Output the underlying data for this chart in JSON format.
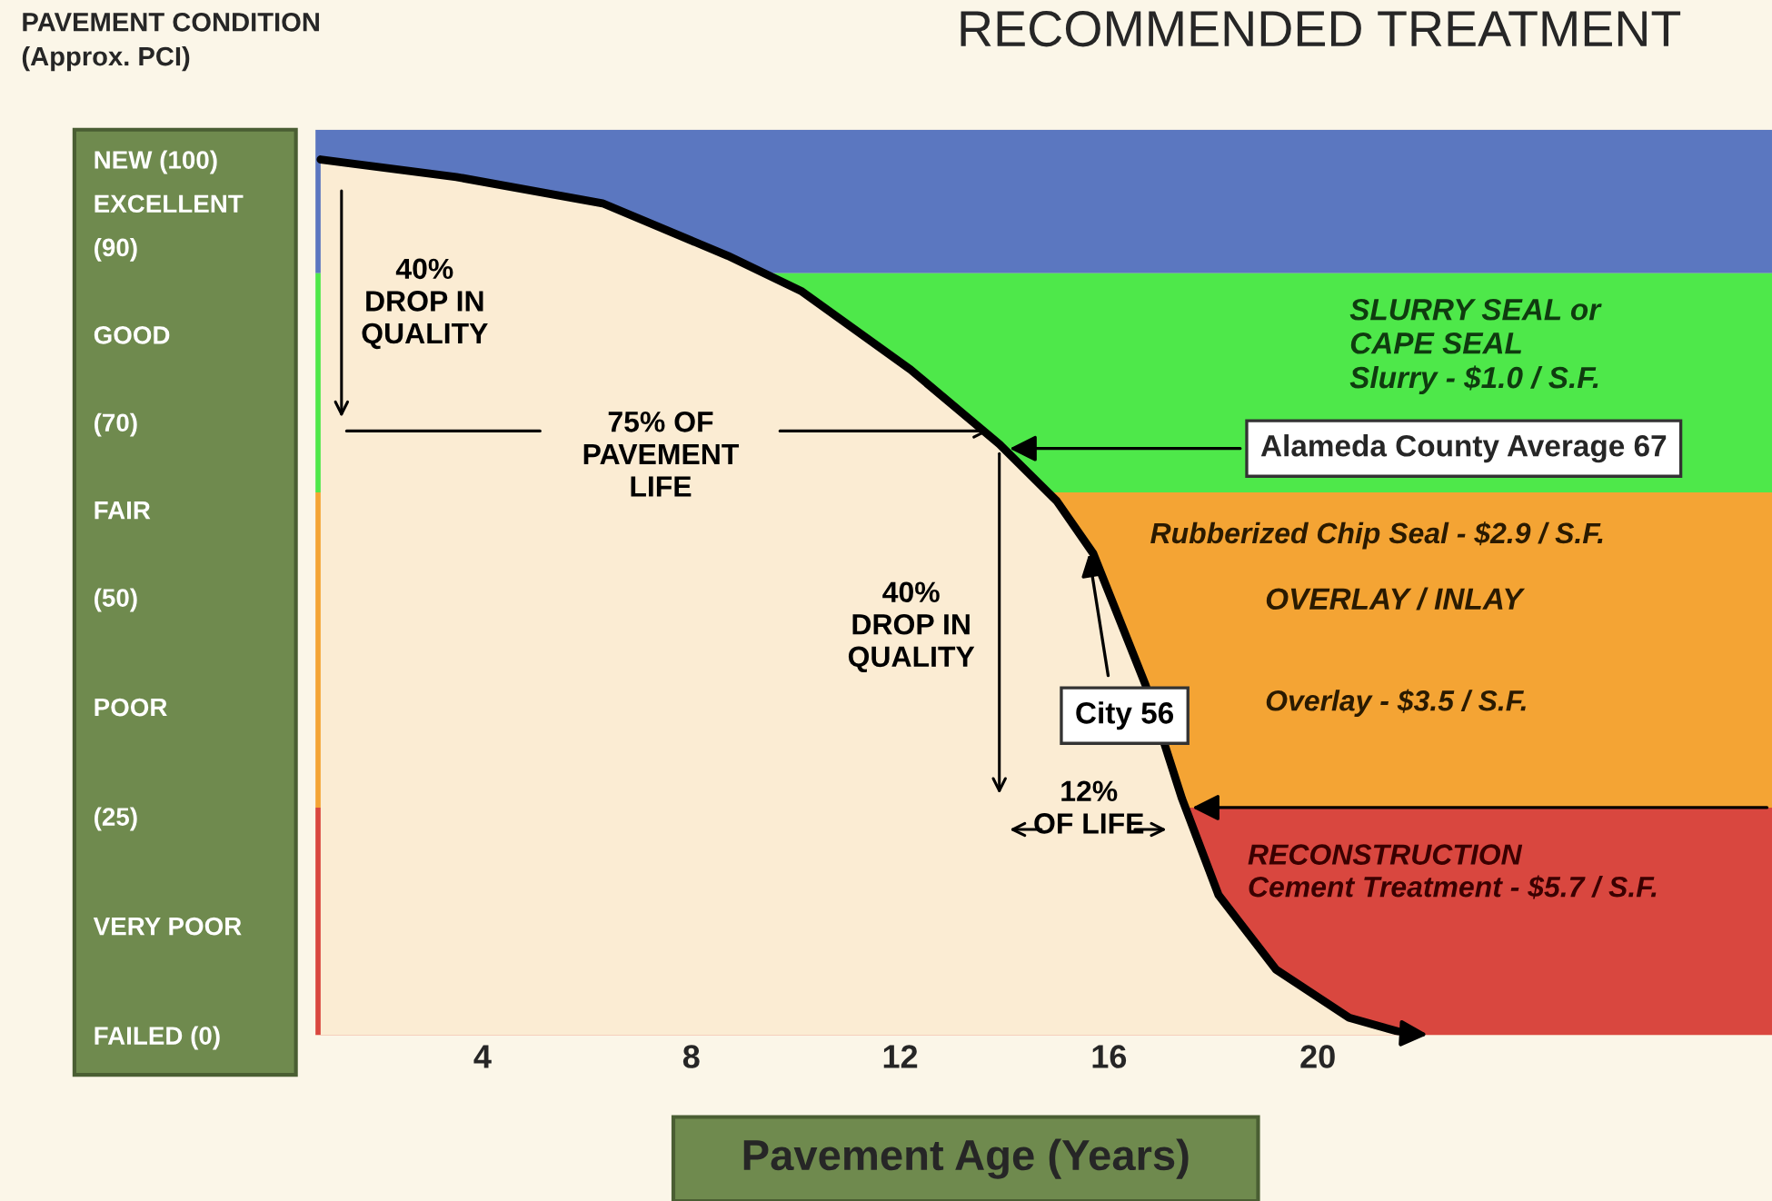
{
  "chart_data": {
    "type": "area",
    "title": "RECOMMENDED TREATMENT",
    "xlabel": "Pavement Age (Years)",
    "ylabel": "PAVEMENT CONDITION\n(Approx. PCI)",
    "x": [
      0.9,
      3.5,
      6.3,
      8.7,
      10.1,
      12.2,
      13.9,
      15,
      15.7,
      16.7,
      17.4,
      18.1,
      19.2,
      20.6,
      21.8
    ],
    "series": [
      {
        "color": "#fbecd3",
        "values": [
          100,
          98,
          95,
          89,
          85,
          76,
          67.5,
          61,
          55,
          40,
          27,
          16,
          7.5,
          2,
          0
        ]
      }
    ],
    "xlim": [
      0.8,
      28.7
    ],
    "xticks": [
      4,
      8,
      12,
      16,
      20
    ],
    "ylim": [
      0,
      103.4
    ],
    "yticks": [
      {
        "value": 100,
        "label": "NEW (100)"
      },
      {
        "value": 95,
        "label": "EXCELLENT"
      },
      {
        "value": 90,
        "label": "(90)"
      },
      {
        "value": 80,
        "label": "GOOD"
      },
      {
        "value": 70,
        "label": "(70)"
      },
      {
        "value": 60,
        "label": "FAIR"
      },
      {
        "value": 50,
        "label": "(50)"
      },
      {
        "value": 37.5,
        "label": "POOR"
      },
      {
        "value": 25,
        "label": "(25)"
      },
      {
        "value": 12.5,
        "label": "VERY POOR"
      },
      {
        "value": 0,
        "label": "FAILED (0)"
      }
    ],
    "bands": [
      {
        "axis": "y",
        "from": 87,
        "to": 103.4,
        "color": "#5b77c0"
      },
      {
        "axis": "y",
        "from": 62,
        "to": 87,
        "color": "#4ee84a"
      },
      {
        "axis": "y",
        "from": 26,
        "to": 62,
        "color": "#f4a434"
      },
      {
        "axis": "y",
        "from": 0,
        "to": 26,
        "color": "#d9473f"
      }
    ],
    "annotations": [
      "40%\nDROP IN\nQUALITY",
      "75% OF\nPAVEMENT\nLIFE",
      "40%\nDROP IN\nQUALITY",
      "12%\nOF LIFE",
      "SLURRY SEAL or\nCAPE SEAL\nSlurry - $1.0 / S.F.",
      {
        "text": "Alameda County Average 67",
        "x": 14.0,
        "y": 67
      },
      "Rubberized Chip Seal - $2.9 / S.F.",
      "OVERLAY / INLAY",
      {
        "text": "City 56",
        "x": 15.6,
        "y": 55.5
      },
      "Overlay - $3.5 / S.F.",
      "RECONSTRUCTION\nCement Treatment - $5.7 / S.F."
    ],
    "grid": false,
    "legend": false,
    "marker": "none",
    "line_style": "solid"
  }
}
